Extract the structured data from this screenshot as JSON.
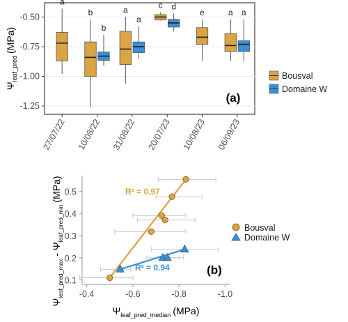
{
  "chart_data": [
    {
      "panel": "(a)",
      "type": "box",
      "ylabel_main": "Ψ",
      "ylabel_sub": "leaf_pred",
      "ylabel_unit": "(MPa)",
      "ylim": [
        -1.32,
        -0.38
      ],
      "yticks": [
        -0.5,
        -0.75,
        -1.0,
        -1.25
      ],
      "ytick_labels": [
        "-0.50",
        "-0.75",
        "-1.00",
        "-1.25"
      ],
      "categories": [
        "27/07/22",
        "10/08/22",
        "31/08/22",
        "20/07/23",
        "10/08/23",
        "06/09/23"
      ],
      "series": [
        {
          "name": "Bousval",
          "color": "#d9a441",
          "boxes": [
            {
              "cat": 0,
              "min": -0.98,
              "q1": -0.87,
              "median": -0.72,
              "q3": -0.63,
              "max": -0.43,
              "letter": "a"
            },
            {
              "cat": 1,
              "min": -1.26,
              "q1": -1.0,
              "median": -0.84,
              "q3": -0.71,
              "max": -0.52,
              "letter": "b"
            },
            {
              "cat": 2,
              "min": -1.06,
              "q1": -0.9,
              "median": -0.77,
              "q3": -0.62,
              "max": -0.5,
              "letter": "a"
            },
            {
              "cat": 3,
              "min": -0.53,
              "q1": -0.525,
              "median": -0.5,
              "q3": -0.48,
              "max": -0.46,
              "letter": "c"
            },
            {
              "cat": 4,
              "min": -0.87,
              "q1": -0.73,
              "median": -0.67,
              "q3": -0.59,
              "max": -0.52,
              "letter": "e"
            },
            {
              "cat": 5,
              "min": -0.87,
              "q1": -0.79,
              "median": -0.74,
              "q3": -0.64,
              "max": -0.52,
              "letter": "a"
            }
          ]
        },
        {
          "name": "Domaine W",
          "color": "#3a8fd6",
          "boxes": [
            {
              "cat": 1,
              "min": -0.91,
              "q1": -0.865,
              "median": -0.83,
              "q3": -0.795,
              "max": -0.65,
              "letter": "b"
            },
            {
              "cat": 2,
              "min": -0.85,
              "q1": -0.8,
              "median": -0.75,
              "q3": -0.71,
              "max": -0.58,
              "letter": "a"
            },
            {
              "cat": 3,
              "min": -0.62,
              "q1": -0.585,
              "median": -0.55,
              "q3": -0.52,
              "max": -0.47,
              "letter": "d"
            },
            {
              "cat": 5,
              "min": -0.87,
              "q1": -0.79,
              "median": -0.73,
              "q3": -0.7,
              "max": -0.52,
              "letter": "a"
            }
          ]
        }
      ]
    },
    {
      "panel": "(b)",
      "type": "scatter",
      "xlabel_main": "Ψ",
      "xlabel_sub": "leaf_pred_median",
      "xlabel_unit": "(MPa)",
      "ylabel_main": "Ψ",
      "ylabel_sub1": "leaf_pred_max",
      "ylabel_mid": " - Ψ",
      "ylabel_sub2": "leaf_pred_min",
      "ylabel_unit": "(MPa)",
      "xlim": [
        -0.38,
        -1.02
      ],
      "ylim": [
        0.08,
        0.57
      ],
      "xticks": [
        -0.4,
        -0.6,
        -0.8,
        -1.0
      ],
      "xtick_labels": [
        "-0.4",
        "-0.6",
        "-0.8",
        "-1.0"
      ],
      "yticks": [
        0.1,
        0.2,
        0.3,
        0.4,
        0.5
      ],
      "ytick_labels": [
        "0.1",
        "0.2",
        "0.3",
        "0.4",
        "0.5"
      ],
      "series": [
        {
          "name": "Bousval",
          "color": "#d9a441",
          "marker": "circle",
          "r2_label": "R² = 0.97",
          "points": [
            {
              "x": -0.5,
              "y": 0.11,
              "xerr": [
                0.37,
                0.6
              ]
            },
            {
              "x": -0.68,
              "y": 0.318,
              "xerr": [
                0.52,
                0.83
              ]
            },
            {
              "x": -0.725,
              "y": 0.39,
              "xerr": [
                0.6,
                0.83
              ]
            },
            {
              "x": -0.74,
              "y": 0.37,
              "xerr": [
                0.62,
                0.87
              ]
            },
            {
              "x": -0.77,
              "y": 0.475,
              "xerr": [
                0.7,
                0.9
              ]
            },
            {
              "x": -0.83,
              "y": 0.553,
              "xerr": [
                0.71,
                0.96
              ]
            }
          ],
          "fit": [
            [
              -0.5,
              0.11
            ],
            [
              -0.83,
              0.553
            ]
          ]
        },
        {
          "name": "Domaine W",
          "color": "#3a8fd6",
          "marker": "triangle",
          "r2_label": "R² = 0.94",
          "points": [
            {
              "x": -0.545,
              "y": 0.148,
              "xerr": [
                0.46,
                0.59
              ]
            },
            {
              "x": -0.73,
              "y": 0.2,
              "xerr": [
                0.66,
                0.8
              ]
            },
            {
              "x": -0.75,
              "y": 0.2,
              "xerr": [
                0.71,
                0.82
              ]
            },
            {
              "x": -0.825,
              "y": 0.238,
              "xerr": [
                0.68,
                0.97
              ]
            }
          ],
          "fit": [
            [
              -0.545,
              0.148
            ],
            [
              -0.825,
              0.238
            ]
          ]
        }
      ]
    }
  ]
}
